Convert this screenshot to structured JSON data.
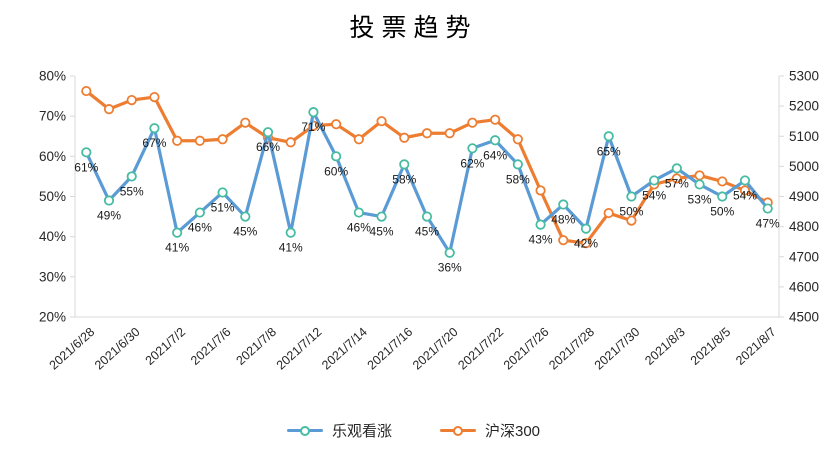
{
  "chart_data": {
    "type": "line",
    "title": "投票趋势",
    "grid": false,
    "legend_position": "bottom",
    "n_points": 31,
    "x_tick_every": 2,
    "x_tick_labels": [
      "2021/6/28",
      "2021/6/30",
      "2021/7/2",
      "2021/7/6",
      "2021/7/8",
      "2021/7/12",
      "2021/7/14",
      "2021/7/16",
      "2021/7/20",
      "2021/7/22",
      "2021/7/26",
      "2021/7/28",
      "2021/7/30",
      "2021/8/3",
      "2021/8/5",
      "2021/8/7"
    ],
    "left_axis": {
      "min": 20,
      "max": 80,
      "step": 10,
      "labels": [
        "80%",
        "70%",
        "60%",
        "50%",
        "40%",
        "30%",
        "20%"
      ]
    },
    "right_axis": {
      "min": 4500,
      "max": 5300,
      "step": 100,
      "labels": [
        "5300",
        "5200",
        "5100",
        "5000",
        "4900",
        "4800",
        "4700",
        "4600",
        "4500"
      ]
    },
    "series": [
      {
        "name": "乐观看涨",
        "axis": "left",
        "color": "#5B9BD5",
        "marker_ring": "#47BCA3",
        "values": [
          61,
          49,
          55,
          67,
          41,
          46,
          51,
          45,
          66,
          41,
          71,
          60,
          46,
          45,
          58,
          45,
          36,
          62,
          64,
          58,
          43,
          48,
          42,
          65,
          50,
          54,
          57,
          53,
          50,
          54,
          47
        ],
        "labels": [
          "61%",
          "49%",
          "55%",
          "67%",
          "41%",
          "46%",
          "51%",
          "45%",
          "66%",
          "41%",
          "71%",
          "60%",
          "46%",
          "45%",
          "58%",
          "45%",
          "36%",
          "62%",
          "64%",
          "58%",
          "43%",
          "48%",
          "42%",
          "65%",
          "50%",
          "54%",
          "57%",
          "53%",
          "50%",
          "54%",
          "47%"
        ]
      },
      {
        "name": "沪深300",
        "axis": "right",
        "color": "#ED7D31",
        "marker_ring": "#ED7D31",
        "values": [
          5250,
          5190,
          5220,
          5230,
          5085,
          5085,
          5090,
          5145,
          5095,
          5080,
          5135,
          5140,
          5090,
          5150,
          5095,
          5110,
          5110,
          5145,
          5155,
          5090,
          4920,
          4755,
          4745,
          4845,
          4820,
          4940,
          4960,
          4970,
          4950,
          4920,
          4880
        ]
      }
    ],
    "colors": {
      "axis_line": "#d9d9d9",
      "tick_text": "#262626",
      "marker_fill": "#ffffff"
    }
  }
}
